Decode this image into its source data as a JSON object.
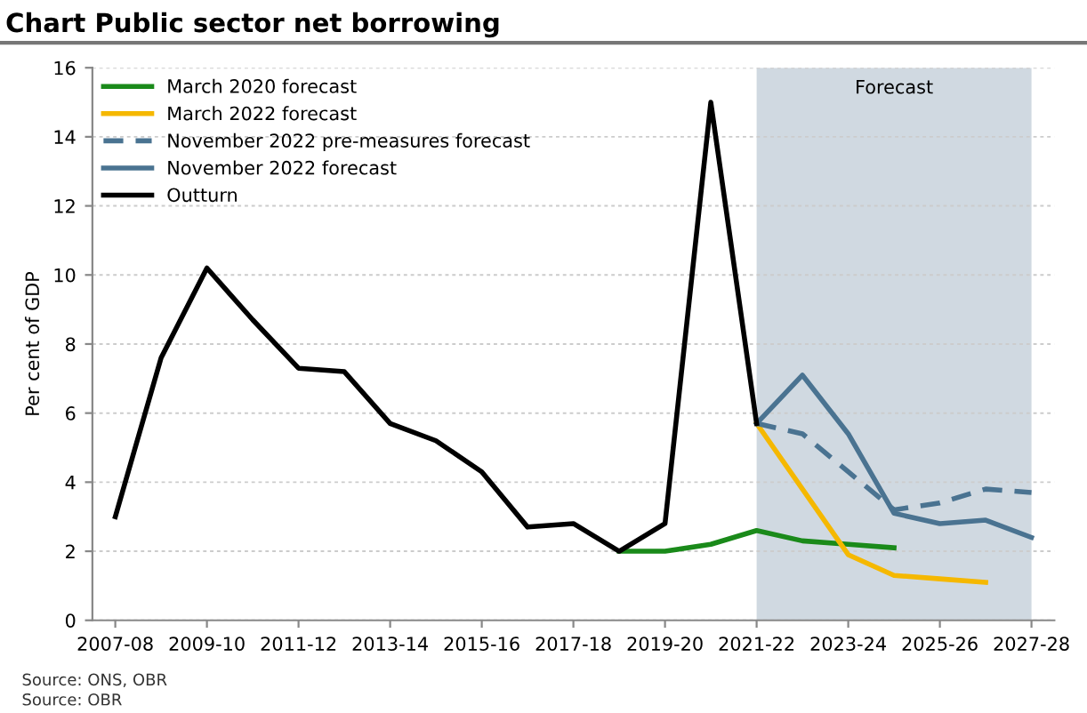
{
  "chart_data": {
    "type": "line",
    "title": "Chart Public sector net borrowing",
    "ylabel": "Per cent of GDP",
    "categories": [
      "2007-08",
      null,
      "2009-10",
      null,
      "2011-12",
      null,
      "2013-14",
      null,
      "2015-16",
      null,
      "2017-18",
      null,
      "2019-20",
      null,
      "2021-22",
      null,
      "2023-24",
      null,
      "2025-26",
      null,
      "2027-28"
    ],
    "series": [
      {
        "name": "March 2020 forecast",
        "color": "#1a8a1a",
        "line_style": "solid",
        "values": [
          null,
          null,
          null,
          null,
          null,
          null,
          null,
          null,
          null,
          null,
          null,
          2.0,
          2.0,
          2.2,
          2.6,
          2.3,
          2.2,
          2.1,
          null,
          null,
          null
        ]
      },
      {
        "name": "March 2022 forecast",
        "color": "#f5b800",
        "line_style": "solid",
        "values": [
          null,
          null,
          null,
          null,
          null,
          null,
          null,
          null,
          null,
          null,
          null,
          null,
          null,
          null,
          5.7,
          3.8,
          1.9,
          1.3,
          1.2,
          1.1,
          null
        ]
      },
      {
        "name": "November 2022 pre-measures forecast",
        "color": "#4a7391",
        "line_style": "dashed",
        "values": [
          null,
          null,
          null,
          null,
          null,
          null,
          null,
          null,
          null,
          null,
          null,
          null,
          null,
          null,
          5.7,
          5.4,
          4.3,
          3.2,
          3.4,
          3.8,
          3.7
        ]
      },
      {
        "name": "November 2022 forecast",
        "color": "#4a7391",
        "line_style": "solid",
        "values": [
          null,
          null,
          null,
          null,
          null,
          null,
          null,
          null,
          null,
          null,
          null,
          null,
          null,
          null,
          5.7,
          7.1,
          5.4,
          3.1,
          2.8,
          2.9,
          2.4
        ]
      },
      {
        "name": "Outturn",
        "color": "#000000",
        "line_style": "solid",
        "values": [
          3.0,
          7.6,
          10.2,
          8.7,
          7.3,
          7.2,
          5.7,
          5.2,
          4.3,
          2.7,
          2.8,
          2.0,
          2.8,
          15.0,
          5.7,
          null,
          null,
          null,
          null,
          null,
          null
        ]
      }
    ],
    "ylim": [
      0,
      16
    ],
    "yticks": [
      0,
      2,
      4,
      6,
      8,
      10,
      12,
      14,
      16
    ],
    "grid": "y",
    "legend": "top left",
    "bands": [
      {
        "axis": "x",
        "from": "2021-22",
        "to": "2027-28",
        "label": "Forecast",
        "color": "#d0d9e1"
      }
    ],
    "annotations": [
      "Source: ONS, OBR",
      "Source: OBR"
    ]
  }
}
